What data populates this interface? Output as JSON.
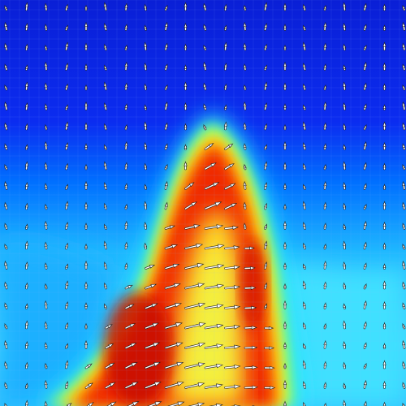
{
  "image": {
    "kind": "flow-field-visualization",
    "description_visible": false
  },
  "colormap": {
    "name": "jet",
    "stops": [
      "#0a1fd6",
      "#0046ff",
      "#00a8ff",
      "#22e3ee",
      "#7dff85",
      "#ffff22",
      "#ffb000",
      "#ff3a00",
      "#d81400"
    ]
  },
  "vector_glyph": {
    "fill": "#ffffff",
    "outline": "#202020"
  },
  "grid": {
    "visible": true,
    "color": "#8fb3ff"
  }
}
